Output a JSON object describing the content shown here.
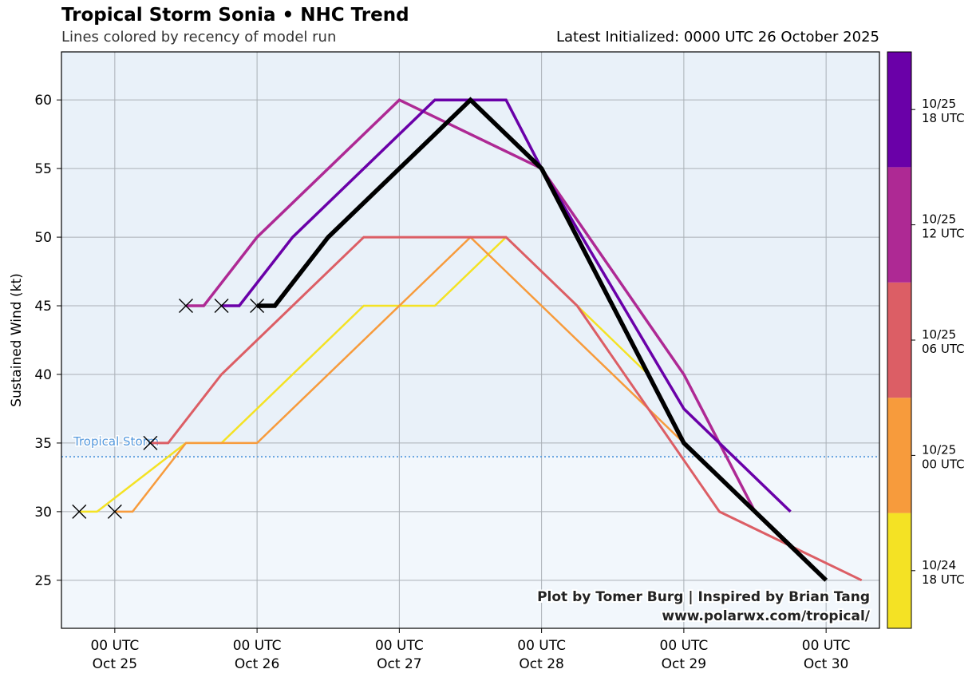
{
  "header": {
    "title": "Tropical Storm Sonia • NHC Trend",
    "subtitle": "Lines colored by recency of model run",
    "latest": "Latest Initialized: 0000 UTC 26 October 2025"
  },
  "credits": {
    "line1": "Plot by Tomer Burg | Inspired by Brian Tang",
    "line2": "www.polarwx.com/tropical/"
  },
  "chart_data": {
    "type": "line",
    "title": "Tropical Storm Sonia • NHC Trend",
    "ylabel": "Sustained Wind (kt)",
    "xlabel": "",
    "xlim": [
      -0.375,
      5.375
    ],
    "ylim": [
      21.5,
      63.5
    ],
    "x_unit": "days since 00 UTC Oct 25",
    "yticks": [
      25,
      30,
      35,
      40,
      45,
      50,
      55,
      60
    ],
    "xticks": [
      {
        "x": 0,
        "line1": "00 UTC",
        "line2": "Oct 25"
      },
      {
        "x": 1,
        "line1": "00 UTC",
        "line2": "Oct 26"
      },
      {
        "x": 2,
        "line1": "00 UTC",
        "line2": "Oct 27"
      },
      {
        "x": 3,
        "line1": "00 UTC",
        "line2": "Oct 28"
      },
      {
        "x": 4,
        "line1": "00 UTC",
        "line2": "Oct 29"
      },
      {
        "x": 5,
        "line1": "00 UTC",
        "line2": "Oct 30"
      }
    ],
    "threshold": {
      "value": 34,
      "label": "Tropical Storm",
      "color": "#5599dd"
    },
    "colorbar": [
      {
        "label_line1": "10/24",
        "label_line2": "18 UTC",
        "color": "#f4e224"
      },
      {
        "label_line1": "10/25",
        "label_line2": "00 UTC",
        "color": "#f79b3c"
      },
      {
        "label_line1": "10/25",
        "label_line2": "06 UTC",
        "color": "#dc5e65"
      },
      {
        "label_line1": "10/25",
        "label_line2": "12 UTC",
        "color": "#ae2994"
      },
      {
        "label_line1": "10/25",
        "label_line2": "18 UTC",
        "color": "#6a00a8"
      }
    ],
    "series": [
      {
        "name": "10/24 18 UTC",
        "color": "#f4e224",
        "width": 2.5,
        "x": [
          -0.25,
          -0.125,
          0.5,
          0.75,
          1.75,
          2.25,
          2.75,
          3.25,
          3.75
        ],
        "y": [
          30,
          30,
          35,
          35,
          45,
          45,
          50,
          45,
          40
        ]
      },
      {
        "name": "10/25 00 UTC",
        "color": "#f79b3c",
        "width": 2.5,
        "x": [
          0,
          0.125,
          0.5,
          1,
          2.5,
          3,
          4
        ],
        "y": [
          30,
          30,
          35,
          35,
          50,
          45,
          35
        ]
      },
      {
        "name": "10/25 06 UTC",
        "color": "#dc5e65",
        "width": 3,
        "x": [
          0.25,
          0.375,
          0.75,
          1.75,
          2.75,
          3.25,
          4.25,
          5.25
        ],
        "y": [
          35,
          35,
          40,
          50,
          50,
          45,
          30,
          25
        ]
      },
      {
        "name": "10/25 12 UTC",
        "color": "#ae2994",
        "width": 3.5,
        "x": [
          0.5,
          0.625,
          1,
          2,
          3,
          4,
          4.5
        ],
        "y": [
          45,
          45,
          50,
          60,
          55,
          40,
          30
        ]
      },
      {
        "name": "10/25 18 UTC",
        "color": "#6a00a8",
        "width": 3.5,
        "x": [
          0.75,
          0.875,
          1.25,
          2.25,
          2.75,
          3,
          4,
          4.75
        ],
        "y": [
          45,
          45,
          50,
          60,
          60,
          55,
          37.5,
          30
        ]
      },
      {
        "name": "10/26 00 UTC",
        "color": "#000000",
        "width": 5.5,
        "x": [
          1,
          1.125,
          1.5,
          2.5,
          3,
          4,
          5
        ],
        "y": [
          45,
          45,
          50,
          60,
          55,
          35,
          25
        ]
      }
    ],
    "markers": [
      {
        "x": -0.25,
        "y": 30
      },
      {
        "x": 0,
        "y": 30
      },
      {
        "x": 0.25,
        "y": 35
      },
      {
        "x": 0.5,
        "y": 45
      },
      {
        "x": 0.75,
        "y": 45
      },
      {
        "x": 1,
        "y": 45
      }
    ]
  }
}
